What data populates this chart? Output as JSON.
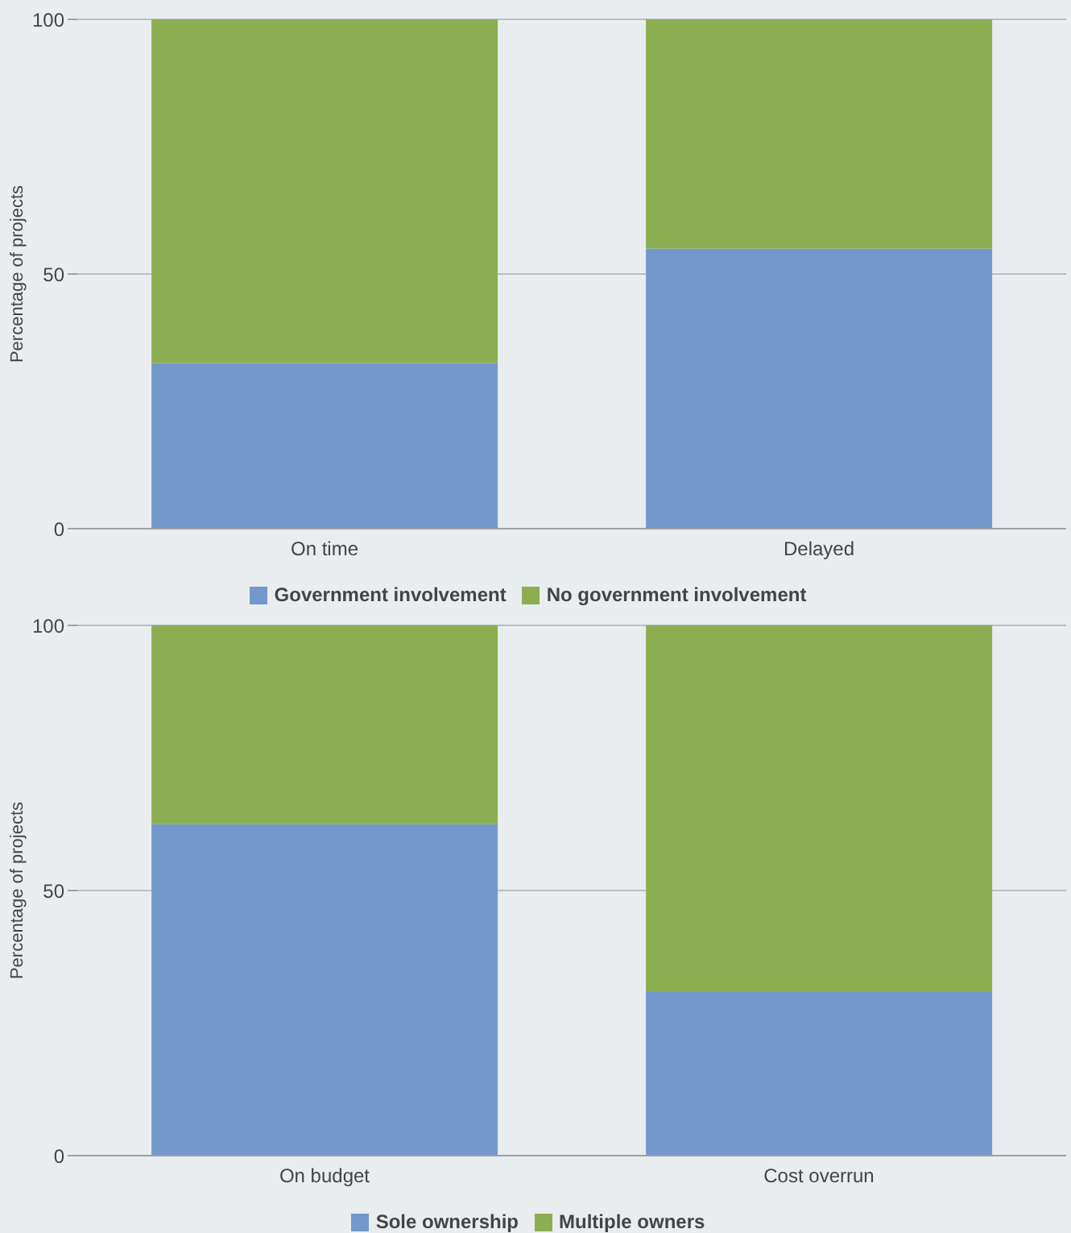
{
  "chart_data": [
    {
      "type": "bar",
      "stacked": true,
      "ylabel": "Percentage of projects",
      "categories": [
        "On time",
        "Delayed"
      ],
      "ylim": [
        0,
        100
      ],
      "yticks": [
        0,
        50,
        100
      ],
      "grid": "y",
      "legend": "bottom",
      "series": [
        {
          "name": "Government involvement",
          "color": "#7399cc",
          "values": [
            32.5,
            55
          ]
        },
        {
          "name": "No government involvement",
          "color": "#8dae50",
          "values": [
            67.5,
            45
          ]
        }
      ]
    },
    {
      "type": "bar",
      "stacked": true,
      "ylabel": "Percentage of projects",
      "categories": [
        "On budget",
        "Cost overrun"
      ],
      "ylim": [
        0,
        100
      ],
      "yticks": [
        0,
        50,
        100
      ],
      "grid": "y",
      "legend": "bottom",
      "series": [
        {
          "name": "Sole ownership",
          "color": "#7399cc",
          "values": [
            62.5,
            31
          ]
        },
        {
          "name": "Multiple owners",
          "color": "#8dae50",
          "values": [
            37.5,
            69
          ]
        }
      ]
    }
  ]
}
